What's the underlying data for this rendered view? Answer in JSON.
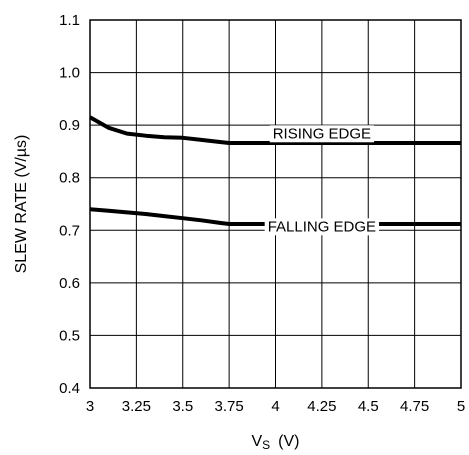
{
  "chart_data": {
    "type": "line",
    "xlabel": "V",
    "xlabel_sub": "S",
    "xlabel_unit": "(V)",
    "ylabel": "SLEW RATE (V/µs)",
    "xlim": [
      3,
      5
    ],
    "ylim": [
      0.4,
      1.1
    ],
    "x_ticks": [
      3,
      3.25,
      3.5,
      3.75,
      4,
      4.25,
      4.5,
      4.75,
      5
    ],
    "x_tick_labels": [
      "3",
      "3.25",
      "3.5",
      "3.75",
      "4",
      "4.25",
      "4.5",
      "4.75",
      "5"
    ],
    "y_ticks": [
      0.4,
      0.5,
      0.6,
      0.7,
      0.8,
      0.9,
      1.0,
      1.1
    ],
    "y_tick_labels": [
      "0.4",
      "0.5",
      "0.6",
      "0.7",
      "0.8",
      "0.9",
      "1.0",
      "1.1"
    ],
    "grid": true,
    "series": [
      {
        "name": "RISING EDGE",
        "x": [
          3.0,
          3.05,
          3.1,
          3.2,
          3.3,
          3.4,
          3.5,
          3.6,
          3.7,
          3.75,
          3.8,
          4.0,
          4.5,
          5.0
        ],
        "y": [
          0.915,
          0.905,
          0.895,
          0.884,
          0.88,
          0.877,
          0.876,
          0.872,
          0.868,
          0.866,
          0.866,
          0.866,
          0.866,
          0.866
        ]
      },
      {
        "name": "FALLING EDGE",
        "x": [
          3.0,
          3.1,
          3.2,
          3.3,
          3.4,
          3.5,
          3.6,
          3.7,
          3.75,
          3.8,
          4.0,
          4.5,
          5.0
        ],
        "y": [
          0.74,
          0.737,
          0.734,
          0.731,
          0.727,
          0.723,
          0.719,
          0.714,
          0.712,
          0.712,
          0.712,
          0.712,
          0.712
        ]
      }
    ],
    "annotations": [
      {
        "text": "RISING EDGE",
        "x": 4.25,
        "y": 0.875
      },
      {
        "text": "FALLING EDGE",
        "x": 4.25,
        "y": 0.698
      }
    ],
    "line_color": "#000000",
    "grid_color": "#000000"
  }
}
